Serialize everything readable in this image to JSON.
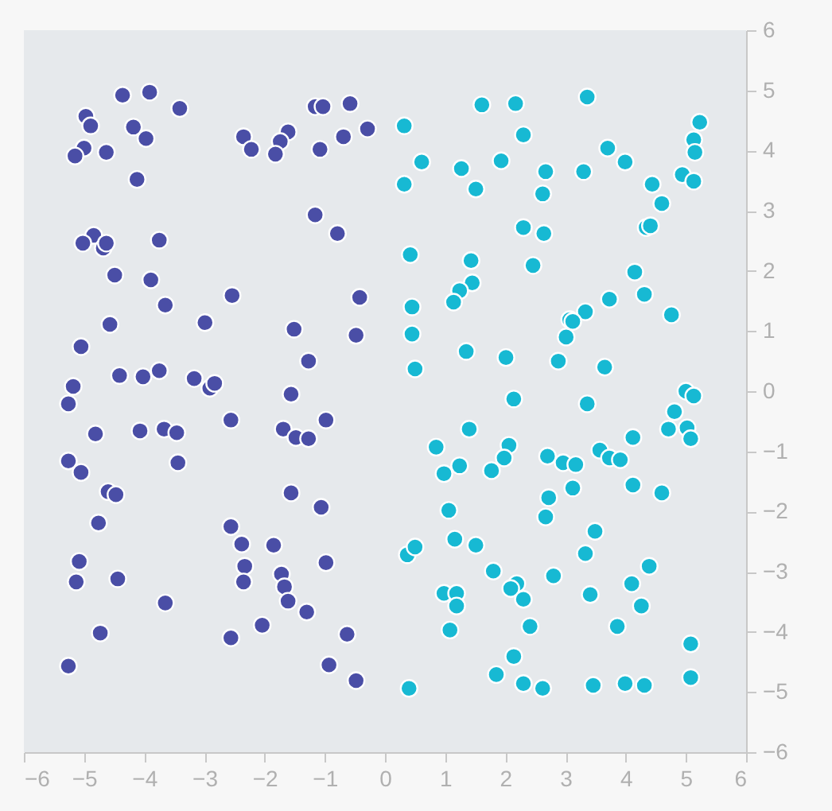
{
  "chart_data": {
    "type": "scatter",
    "xlim": [
      -6,
      6
    ],
    "ylim": [
      -6,
      6
    ],
    "xticks": [
      -6,
      -5,
      -4,
      -3,
      -2,
      -1,
      0,
      1,
      2,
      3,
      4,
      5,
      6
    ],
    "yticks": [
      -6,
      -5,
      -4,
      -3,
      -2,
      -1,
      0,
      1,
      2,
      3,
      4,
      5,
      6
    ],
    "grid": false,
    "legend": false,
    "marker": "circle",
    "series": [
      {
        "color": "#4a4ea6",
        "x": [
          -4.36,
          -3.91,
          -3.41,
          -4.97,
          -4.89,
          -4.18,
          -3.97,
          -5.0,
          -5.15,
          -4.63,
          -4.12,
          -2.35,
          -2.22,
          -1.61,
          -1.74,
          -1.82,
          -1.16,
          -1.03,
          -0.58,
          -0.69,
          -0.29,
          -1.08,
          -1.16,
          -0.79,
          -4.84,
          -5.02,
          -4.68,
          -4.63,
          -3.75,
          -4.49,
          -3.89,
          -3.65,
          -2.54,
          -2.99,
          -4.57,
          -5.05,
          -1.51,
          -0.42,
          -0.48,
          -1.27,
          -5.18,
          -5.26,
          -4.41,
          -4.02,
          -3.75,
          -3.17,
          -2.91,
          -2.83,
          -1.56,
          -4.81,
          -4.07,
          -3.67,
          -3.46,
          -2.56,
          -1.69,
          -1.48,
          -1.27,
          -0.98,
          -5.26,
          -5.05,
          -3.44,
          -4.6,
          -4.47,
          -1.56,
          -1.06,
          -4.76,
          -2.56,
          -2.38,
          -1.85,
          -5.08,
          -5.13,
          -4.44,
          -2.33,
          -2.35,
          -1.72,
          -1.67,
          -1.61,
          -0.98,
          -1.3,
          -3.65,
          -4.73,
          -2.56,
          -2.04,
          -0.63,
          -5.26,
          -0.93,
          -0.48
        ],
        "values": [
          4.92,
          4.97,
          4.7,
          4.57,
          4.41,
          4.39,
          4.2,
          4.04,
          3.91,
          3.97,
          3.52,
          4.23,
          4.02,
          4.31,
          4.15,
          3.94,
          4.73,
          4.73,
          4.78,
          4.23,
          4.36,
          4.02,
          2.93,
          2.62,
          2.59,
          2.46,
          2.38,
          2.46,
          2.51,
          1.93,
          1.85,
          1.43,
          1.59,
          1.14,
          1.11,
          0.74,
          1.03,
          1.56,
          0.93,
          0.5,
          0.08,
          -0.21,
          0.26,
          0.24,
          0.34,
          0.21,
          0.05,
          0.13,
          -0.05,
          -0.71,
          -0.66,
          -0.63,
          -0.69,
          -0.48,
          -0.63,
          -0.77,
          -0.79,
          -0.48,
          -1.16,
          -1.35,
          -1.19,
          -1.67,
          -1.72,
          -1.69,
          -1.93,
          -2.19,
          -2.25,
          -2.54,
          -2.56,
          -2.83,
          -3.17,
          -3.12,
          -2.91,
          -3.17,
          -3.04,
          -3.25,
          -3.49,
          -2.85,
          -3.67,
          -3.52,
          -4.02,
          -4.1,
          -3.89,
          -4.04,
          -4.57,
          -4.55,
          -4.81
        ]
      },
      {
        "color": "#17b9d3",
        "x": [
          0.32,
          1.61,
          2.17,
          3.36,
          2.3,
          0.61,
          1.27,
          1.93,
          1.51,
          0.32,
          2.67,
          2.62,
          3.3,
          3.7,
          3.99,
          4.44,
          4.6,
          4.94,
          5.13,
          5.23,
          5.13,
          5.15,
          4.34,
          4.41,
          2.3,
          2.64,
          0.42,
          1.43,
          1.45,
          1.24,
          1.14,
          2.46,
          4.15,
          4.31,
          3.73,
          3.33,
          3.07,
          3.12,
          3.01,
          4.76,
          0.45,
          0.45,
          1.35,
          2.01,
          2.88,
          3.65,
          0.5,
          2.14,
          3.36,
          5.0,
          5.13,
          4.81,
          4.71,
          5.02,
          5.08,
          4.12,
          1.4,
          0.85,
          2.06,
          1.98,
          1.24,
          0.98,
          1.77,
          2.7,
          2.96,
          3.17,
          3.57,
          3.73,
          3.91,
          3.12,
          4.12,
          4.6,
          2.72,
          2.67,
          1.06,
          3.49,
          3.33,
          0.37,
          0.5,
          1.16,
          1.51,
          1.8,
          2.19,
          2.09,
          2.3,
          2.8,
          4.39,
          4.1,
          4.26,
          3.41,
          0.98,
          1.19,
          1.19,
          1.08,
          2.41,
          3.86,
          5.08,
          2.14,
          1.85,
          2.3,
          2.62,
          0.4,
          3.46,
          3.99,
          4.31,
          5.08
        ],
        "values": [
          4.41,
          4.76,
          4.78,
          4.89,
          4.26,
          3.81,
          3.7,
          3.83,
          3.36,
          3.44,
          3.65,
          3.28,
          3.65,
          4.04,
          3.81,
          3.44,
          3.12,
          3.6,
          3.49,
          4.47,
          4.18,
          3.97,
          2.72,
          2.75,
          2.72,
          2.62,
          2.27,
          2.17,
          1.8,
          1.67,
          1.48,
          2.09,
          1.98,
          1.61,
          1.53,
          1.32,
          1.19,
          1.16,
          0.9,
          1.27,
          1.4,
          0.95,
          0.66,
          0.56,
          0.5,
          0.4,
          0.37,
          -0.13,
          -0.21,
          0.0,
          -0.08,
          -0.34,
          -0.63,
          -0.61,
          -0.79,
          -0.77,
          -0.63,
          -0.93,
          -0.9,
          -1.11,
          -1.24,
          -1.37,
          -1.32,
          -1.08,
          -1.19,
          -1.22,
          -0.98,
          -1.11,
          -1.14,
          -1.61,
          -1.56,
          -1.69,
          -1.77,
          -2.09,
          -1.98,
          -2.33,
          -2.7,
          -2.72,
          -2.59,
          -2.46,
          -2.56,
          -2.99,
          -3.2,
          -3.28,
          -3.46,
          -3.07,
          -2.91,
          -3.2,
          -3.57,
          -3.38,
          -3.36,
          -3.36,
          -3.57,
          -3.97,
          -3.91,
          -3.91,
          -4.2,
          -4.41,
          -4.71,
          -4.86,
          -4.94,
          -4.94,
          -4.89,
          -4.86,
          -4.89,
          -4.76
        ]
      }
    ]
  }
}
